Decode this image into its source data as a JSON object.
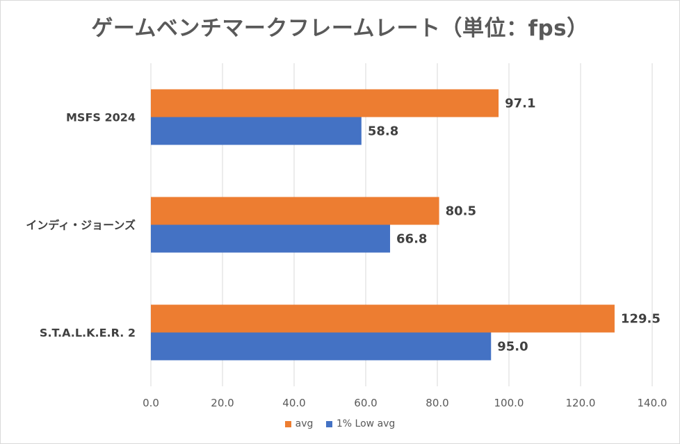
{
  "chart_data": {
    "type": "bar",
    "orientation": "horizontal",
    "title": "ゲームベンチマークフレームレート（単位：fps）",
    "categories": [
      "MSFS 2024",
      "インディ・ジョーンズ",
      "S.T.A.L.K.E.R. 2"
    ],
    "series": [
      {
        "name": "avg",
        "color": "#ed7d31",
        "values": [
          97.1,
          80.5,
          129.5
        ]
      },
      {
        "name": "1% Low avg",
        "color": "#4472c4",
        "values": [
          58.8,
          66.8,
          95.0
        ]
      }
    ],
    "xlim": [
      0,
      140
    ],
    "ticks": [
      "0.0",
      "20.0",
      "40.0",
      "60.0",
      "80.0",
      "100.0",
      "120.0",
      "140.0"
    ],
    "data_labels": [
      [
        "97.1",
        "80.5",
        "129.5"
      ],
      [
        "58.8",
        "66.8",
        "95.0"
      ]
    ],
    "grid": true,
    "legend": "bottom"
  }
}
